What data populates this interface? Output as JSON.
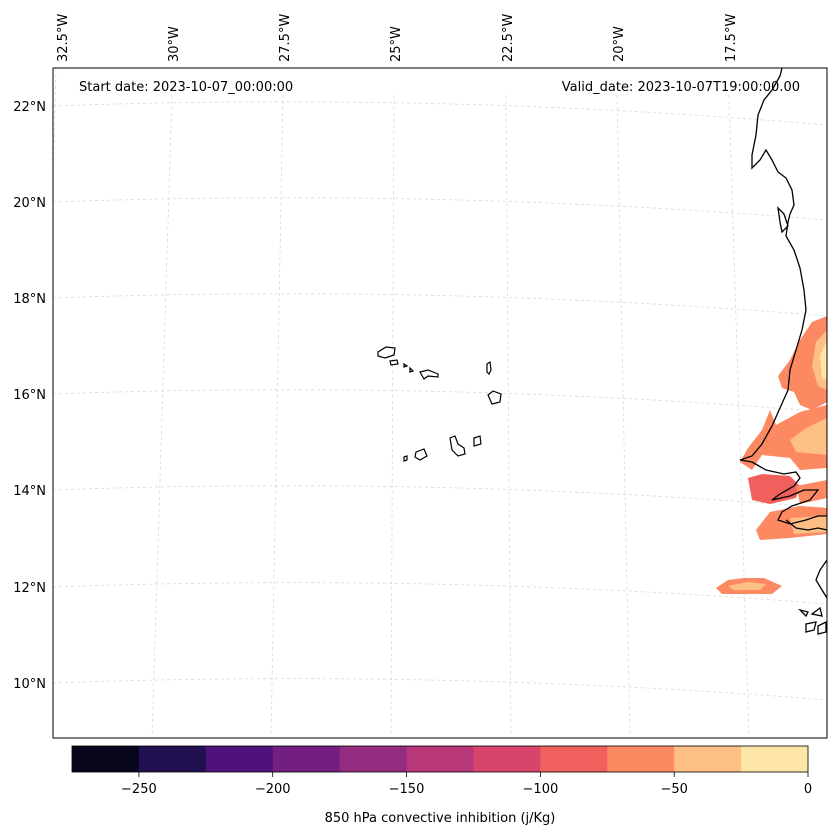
{
  "map": {
    "start_date_text": "Start date: 2023-10-07_00:00:00",
    "valid_date_text": "Valid_date: 2023-10-07T19:00:00.00",
    "lon_labels": [
      "32.5°W",
      "30°W",
      "27.5°W",
      "25°W",
      "22.5°W",
      "20°W",
      "17.5°W"
    ],
    "lat_labels": [
      "22°N",
      "20°N",
      "18°N",
      "16°N",
      "14°N",
      "12°N",
      "10°N"
    ],
    "gridlines": true,
    "coastline_color": "#000000"
  },
  "colorbar": {
    "label": "850 hPa convective inhibition (j/Kg)",
    "ticks": [
      "−250",
      "−200",
      "−150",
      "−100",
      "−50",
      "0"
    ],
    "range": [
      -275,
      0
    ],
    "bins": [
      {
        "from": -275,
        "to": -250,
        "color": "#07061c"
      },
      {
        "from": -250,
        "to": -225,
        "color": "#221150"
      },
      {
        "from": -225,
        "to": -200,
        "color": "#4f127b"
      },
      {
        "from": -200,
        "to": -175,
        "color": "#721f81"
      },
      {
        "from": -175,
        "to": -150,
        "color": "#942c80"
      },
      {
        "from": -150,
        "to": -125,
        "color": "#b73779"
      },
      {
        "from": -125,
        "to": -100,
        "color": "#d8456c"
      },
      {
        "from": -100,
        "to": -75,
        "color": "#f1605d"
      },
      {
        "from": -75,
        "to": -50,
        "color": "#fc8961"
      },
      {
        "from": -50,
        "to": -25,
        "color": "#febf84"
      },
      {
        "from": -25,
        "to": 0,
        "color": "#fde6a8"
      }
    ]
  }
}
